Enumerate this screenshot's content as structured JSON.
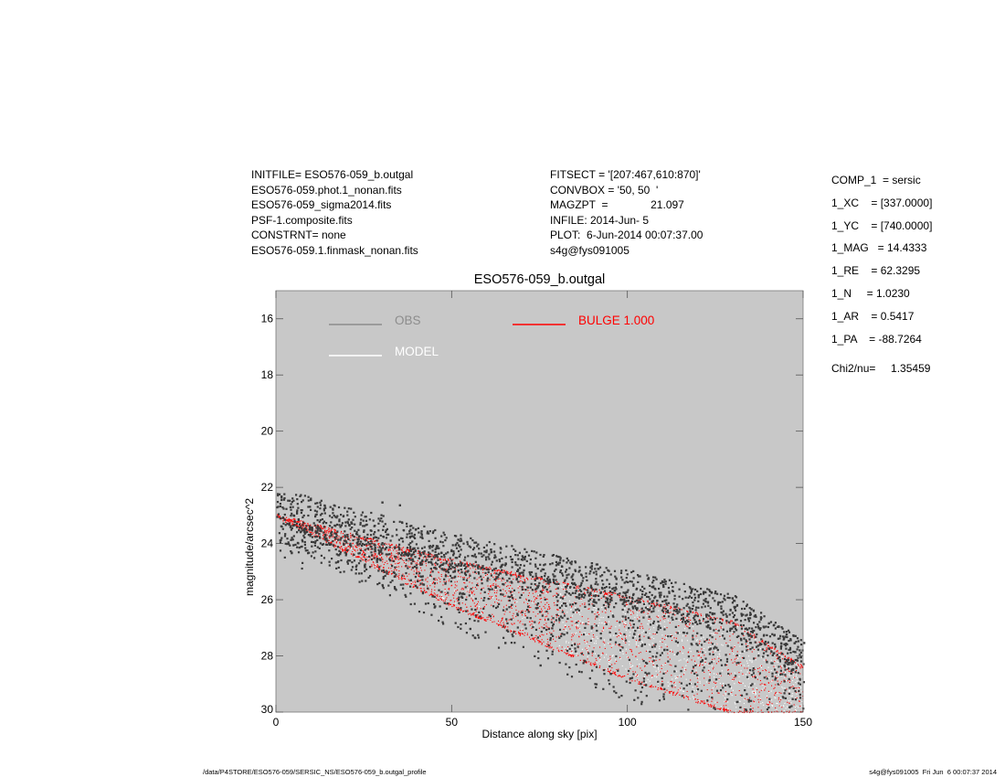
{
  "header_left": [
    "INITFILE= ESO576-059_b.outgal",
    "ESO576-059.phot.1_nonan.fits",
    "ESO576-059_sigma2014.fits",
    "PSF-1.composite.fits",
    "CONSTRNT= none",
    "ESO576-059.1.finmask_nonan.fits"
  ],
  "header_mid": [
    "FITSECT = '[207:467,610:870]'",
    "CONVBOX = '50, 50  '",
    "MAGZPT  =              21.097",
    "INFILE: 2014-Jun- 5",
    "PLOT:  6-Jun-2014 00:07:37.00",
    "s4g@fys091005"
  ],
  "params": [
    "COMP_1  = sersic",
    "1_XC    = [337.0000]",
    "1_YC    = [740.0000]",
    "1_MAG   = 14.4333",
    "1_RE    = 62.3295",
    "1_N     = 1.0230",
    "1_AR    = 0.5417",
    "1_PA    = -88.7264"
  ],
  "chi2": "Chi2/nu=     1.35459",
  "footer_left": "/data/P4STORE/ESO576-059/SERSIC_NS/ESO576-059_b.outgal_profile",
  "footer_right": "s4g@fys091005  Fri Jun  6 00:07:37 2014",
  "chart_data": {
    "type": "scatter",
    "title": "ESO576-059_b.outgal",
    "xlabel": "Distance along sky [pix]",
    "ylabel": "magnitude/arcsec^2",
    "xlim": [
      0,
      150
    ],
    "ylim": [
      30,
      15
    ],
    "y_inverted": true,
    "x_ticks": [
      0,
      50,
      100,
      150
    ],
    "y_ticks": [
      16,
      18,
      20,
      22,
      24,
      26,
      28,
      30
    ],
    "background": "#c8c8c8",
    "grid": false,
    "legend_placement": "top-left",
    "series": [
      {
        "name": "OBS",
        "color": "#8c8c8c",
        "marker": "dark-grey-points",
        "point_color": "#3a3a3a",
        "sample_points": [
          [
            2,
            22.4
          ],
          [
            5,
            23.3
          ],
          [
            10,
            23.4
          ],
          [
            15,
            24.0
          ],
          [
            20,
            24.2
          ],
          [
            25,
            24.8
          ],
          [
            30,
            22.5
          ],
          [
            35,
            22.6
          ],
          [
            40,
            25.3
          ],
          [
            45,
            26.2
          ],
          [
            50,
            24.8
          ],
          [
            55,
            27.0
          ],
          [
            60,
            25.2
          ],
          [
            65,
            27.5
          ],
          [
            70,
            25.0
          ],
          [
            75,
            28.3
          ],
          [
            80,
            25.4
          ],
          [
            85,
            27.8
          ],
          [
            90,
            25.6
          ],
          [
            95,
            28.6
          ],
          [
            100,
            26.0
          ],
          [
            105,
            29.0
          ],
          [
            110,
            25.5
          ],
          [
            115,
            28.5
          ],
          [
            120,
            25.8
          ],
          [
            125,
            28.8
          ],
          [
            130,
            26.0
          ],
          [
            135,
            26.3
          ],
          [
            140,
            26.8
          ],
          [
            145,
            27.2
          ],
          [
            150,
            27.5
          ]
        ]
      },
      {
        "name": "MODEL",
        "color": "#ffffff",
        "marker": "white-points"
      },
      {
        "name": "BULGE  1.000",
        "color": "#ff0000",
        "marker": "red-points",
        "envelope_upper": [
          [
            0,
            23.0
          ],
          [
            50,
            24.6
          ],
          [
            100,
            25.9
          ],
          [
            130,
            26.8
          ],
          [
            150,
            28.4
          ]
        ],
        "envelope_lower": [
          [
            0,
            23.0
          ],
          [
            50,
            26.2
          ],
          [
            100,
            28.8
          ],
          [
            130,
            30.0
          ],
          [
            150,
            30.0
          ]
        ]
      }
    ]
  }
}
